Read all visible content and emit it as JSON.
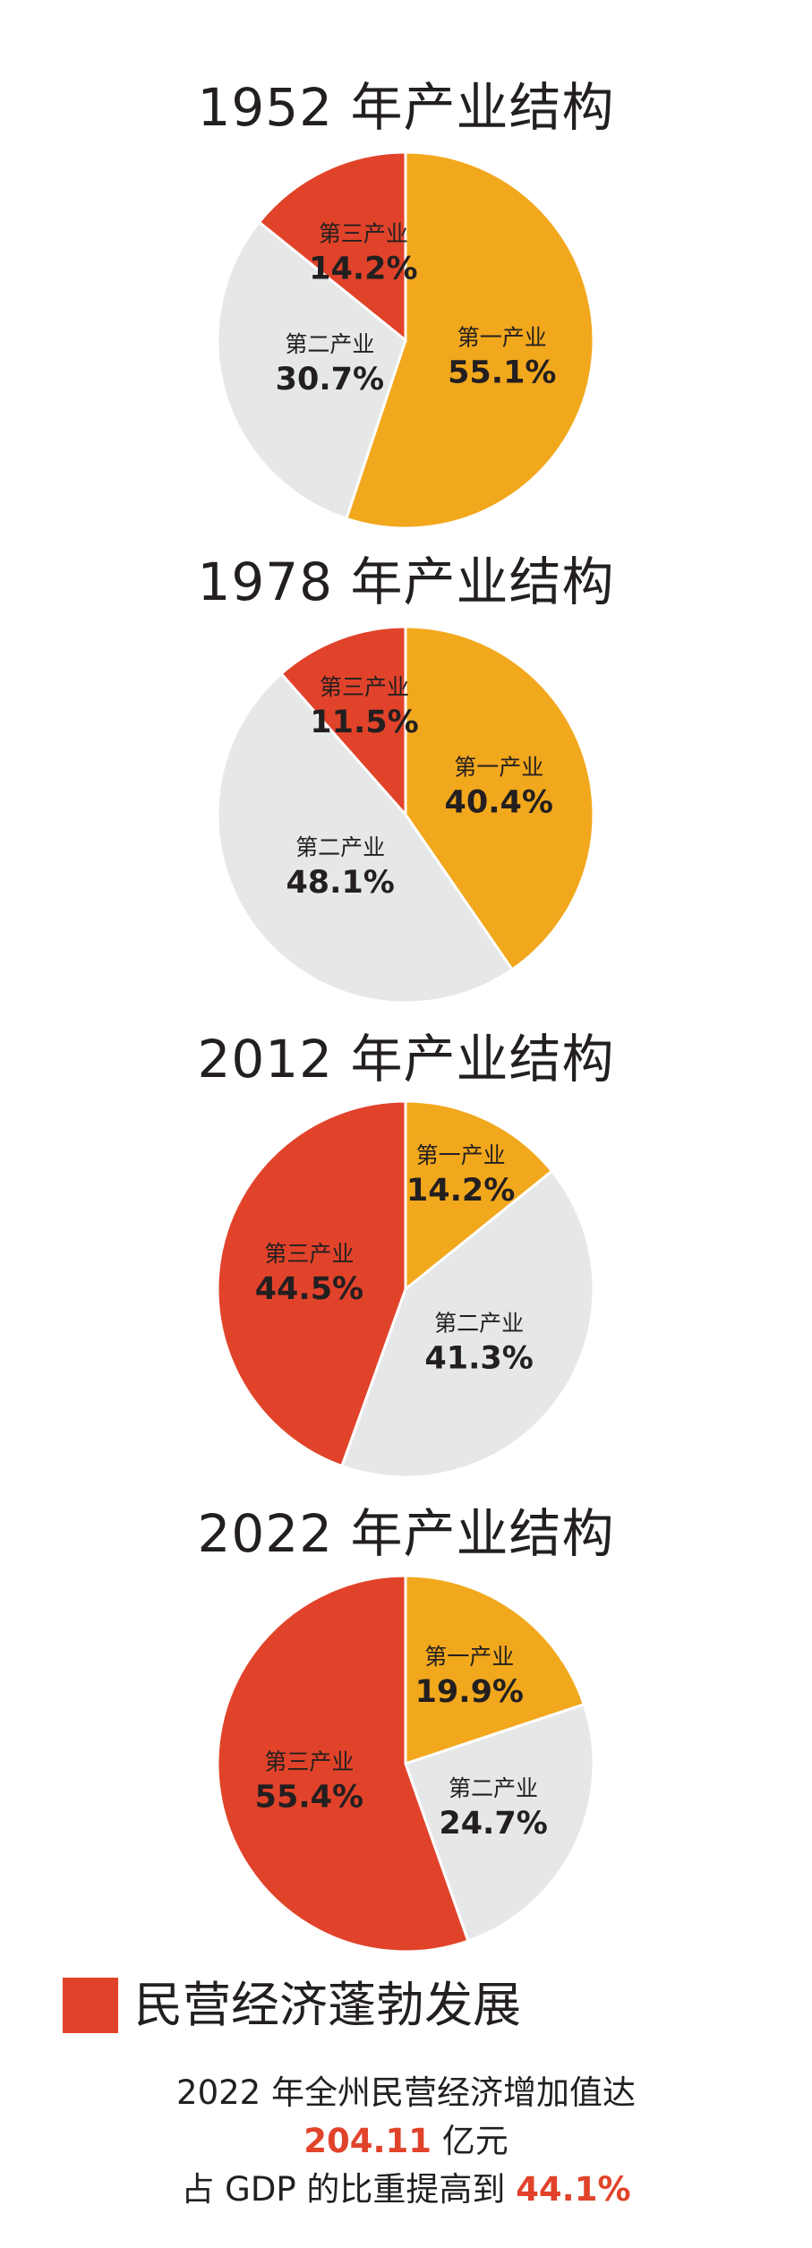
{
  "colors": {
    "primary": "#f2a81d",
    "secondary": "#e6e7e8",
    "tertiary": "#e1432a",
    "text": "#231f20"
  },
  "chart_data": [
    {
      "type": "pie",
      "title": "1952 年产业结构",
      "slices": [
        {
          "label": "第一产业",
          "value": 55.1,
          "text": "55.1%",
          "color": "#f2a81d"
        },
        {
          "label": "第二产业",
          "value": 30.7,
          "text": "30.7%",
          "color": "#e6e7e8"
        },
        {
          "label": "第三产业",
          "value": 14.2,
          "text": "14.2%",
          "color": "#e1432a"
        }
      ]
    },
    {
      "type": "pie",
      "title": "1978 年产业结构",
      "slices": [
        {
          "label": "第一产业",
          "value": 40.4,
          "text": "40.4%",
          "color": "#f2a81d"
        },
        {
          "label": "第二产业",
          "value": 48.1,
          "text": "48.1%",
          "color": "#e6e7e8"
        },
        {
          "label": "第三产业",
          "value": 11.5,
          "text": "11.5%",
          "color": "#e1432a"
        }
      ]
    },
    {
      "type": "pie",
      "title": "2012 年产业结构",
      "slices": [
        {
          "label": "第一产业",
          "value": 14.2,
          "text": "14.2%",
          "color": "#f2a81d"
        },
        {
          "label": "第二产业",
          "value": 41.3,
          "text": "41.3%",
          "color": "#e6e7e8"
        },
        {
          "label": "第三产业",
          "value": 44.5,
          "text": "44.5%",
          "color": "#e1432a"
        }
      ]
    },
    {
      "type": "pie",
      "title": "2022 年产业结构",
      "slices": [
        {
          "label": "第一产业",
          "value": 19.9,
          "text": "19.9%",
          "color": "#f2a81d"
        },
        {
          "label": "第二产业",
          "value": 24.7,
          "text": "24.7%",
          "color": "#e6e7e8"
        },
        {
          "label": "第三产业",
          "value": 55.4,
          "text": "55.4%",
          "color": "#e1432a"
        }
      ]
    }
  ],
  "section": {
    "title": "民营经济蓬勃发展"
  },
  "summary": {
    "line1": "2022 年全州民营经济增加值达",
    "amount": "204.11",
    "amount_unit": "亿元",
    "line3_prefix": "占 GDP 的比重提高到",
    "ratio": "44.1%"
  }
}
